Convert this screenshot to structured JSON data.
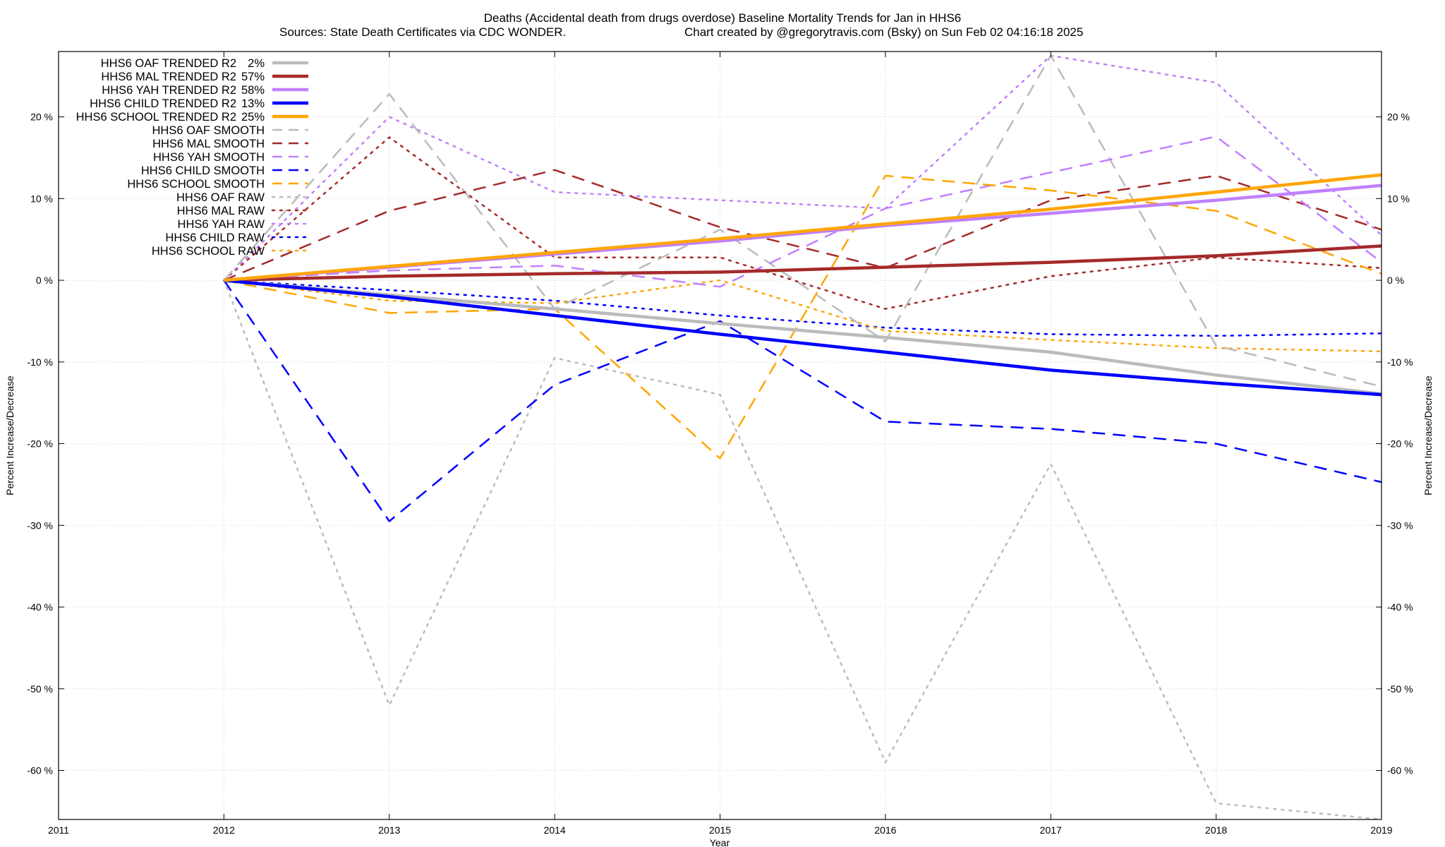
{
  "chart_data": {
    "type": "line",
    "title": "Deaths (Accidental death from drugs overdose)  Baseline Mortality Trends for Jan in HHS6",
    "subtitle_left": "Sources: State Death Certificates via CDC WONDER.",
    "subtitle_right": "Chart created by @gregorytravis.com (Bsky) on Sun Feb 02 04:16:18 2025",
    "xlabel": "Year",
    "ylabel": "Percent Increase/Decrease",
    "ylabel_right": "Percent Increase/Decrease",
    "xlim": [
      2011,
      2019
    ],
    "ylim": [
      -66,
      28
    ],
    "x_ticks": [
      "2011",
      "2012",
      "2013",
      "2014",
      "2015",
      "2016",
      "2017",
      "2018",
      "2019"
    ],
    "y_ticks": [
      20,
      10,
      0,
      -10,
      -20,
      -30,
      -40,
      -50,
      -60
    ],
    "y_tick_labels": [
      "20 %",
      "10 %",
      "0 %",
      "-10 %",
      "-20 %",
      "-30 %",
      "-40 %",
      "-50 %",
      "-60 %"
    ],
    "grid": true,
    "legend_position": "top-left",
    "x": [
      2012,
      2013,
      2014,
      2015,
      2016,
      2017,
      2018,
      2019
    ],
    "series": [
      {
        "name": "HHS6 OAF TRENDED R2",
        "r2": "2%",
        "color": "#bbbbbb",
        "dash": "solid",
        "width": 4.5,
        "values": [
          0,
          -1.8,
          -3.5,
          -5.3,
          -7.0,
          -8.8,
          -11.6,
          -13.9
        ]
      },
      {
        "name": "HHS6 MAL TRENDED R2",
        "r2": "57%",
        "color": "#a52a2a",
        "dash": "solid",
        "width": 4.5,
        "values": [
          0,
          0.5,
          0.8,
          1.0,
          1.6,
          2.2,
          3.0,
          4.2
        ]
      },
      {
        "name": "HHS6 YAH TRENDED R2",
        "r2": "58%",
        "color": "#c080ff",
        "dash": "solid",
        "width": 4.5,
        "values": [
          0,
          1.6,
          3.2,
          4.8,
          6.7,
          8.2,
          9.8,
          11.6
        ]
      },
      {
        "name": "HHS6 CHILD TRENDED R2",
        "r2": "13%",
        "color": "#0000ff",
        "dash": "solid",
        "width": 4.5,
        "values": [
          0,
          -2.0,
          -4.3,
          -6.6,
          -8.8,
          -11.0,
          -12.6,
          -14.0
        ]
      },
      {
        "name": "HHS6 SCHOOL TRENDED R2",
        "r2": "25%",
        "color": "#ffa500",
        "dash": "solid",
        "width": 4.5,
        "values": [
          0,
          1.7,
          3.4,
          5.1,
          6.9,
          8.7,
          10.8,
          12.9
        ]
      },
      {
        "name": "HHS6 OAF SMOOTH",
        "color": "#bbbbbb",
        "dash": "dashed",
        "width": 2.5,
        "values": [
          0,
          22.8,
          -3.5,
          6.2,
          -7.5,
          27.5,
          -8.0,
          -13.0
        ]
      },
      {
        "name": "HHS6 MAL SMOOTH",
        "color": "#a52a2a",
        "dash": "dashed",
        "width": 2.5,
        "values": [
          0,
          8.5,
          13.5,
          6.5,
          1.5,
          9.8,
          12.8,
          6.2
        ]
      },
      {
        "name": "HHS6 YAH SMOOTH",
        "color": "#c080ff",
        "dash": "dashed",
        "width": 2.5,
        "values": [
          0,
          1.2,
          1.8,
          -0.8,
          8.8,
          13.2,
          17.6,
          2.2
        ]
      },
      {
        "name": "HHS6 CHILD SMOOTH",
        "color": "#0000ff",
        "dash": "dashed",
        "width": 2.5,
        "values": [
          0,
          -29.5,
          -12.8,
          -5.0,
          -17.3,
          -18.2,
          -20.0,
          -24.7
        ]
      },
      {
        "name": "HHS6 SCHOOL SMOOTH",
        "color": "#ffa500",
        "dash": "dashed",
        "width": 2.5,
        "values": [
          0,
          -4.0,
          -3.5,
          -21.8,
          12.8,
          11.0,
          8.5,
          0.8
        ]
      },
      {
        "name": "HHS6 OAF RAW",
        "color": "#bbbbbb",
        "dash": "dotted",
        "width": 2.5,
        "values": [
          0,
          -52.0,
          -9.5,
          -14.0,
          -59.0,
          -22.5,
          -64.0,
          -66.0
        ]
      },
      {
        "name": "HHS6 MAL RAW",
        "color": "#a52a2a",
        "dash": "dotted",
        "width": 2.5,
        "values": [
          0,
          17.5,
          2.8,
          2.8,
          -3.5,
          0.5,
          2.8,
          1.5
        ]
      },
      {
        "name": "HHS6 YAH RAW",
        "color": "#c080ff",
        "dash": "dotted",
        "width": 2.5,
        "values": [
          0,
          20.0,
          10.8,
          9.8,
          8.8,
          27.5,
          24.2,
          5.5
        ]
      },
      {
        "name": "HHS6 CHILD RAW",
        "color": "#0000ff",
        "dash": "dotted",
        "width": 2.5,
        "values": [
          0,
          -1.2,
          -2.5,
          -4.3,
          -5.8,
          -6.6,
          -6.8,
          -6.5
        ]
      },
      {
        "name": "HHS6 SCHOOL RAW",
        "color": "#ffa500",
        "dash": "dotted",
        "width": 2.5,
        "values": [
          0,
          -2.5,
          -2.8,
          0.0,
          -6.2,
          -7.3,
          -8.3,
          -8.7
        ]
      }
    ]
  }
}
